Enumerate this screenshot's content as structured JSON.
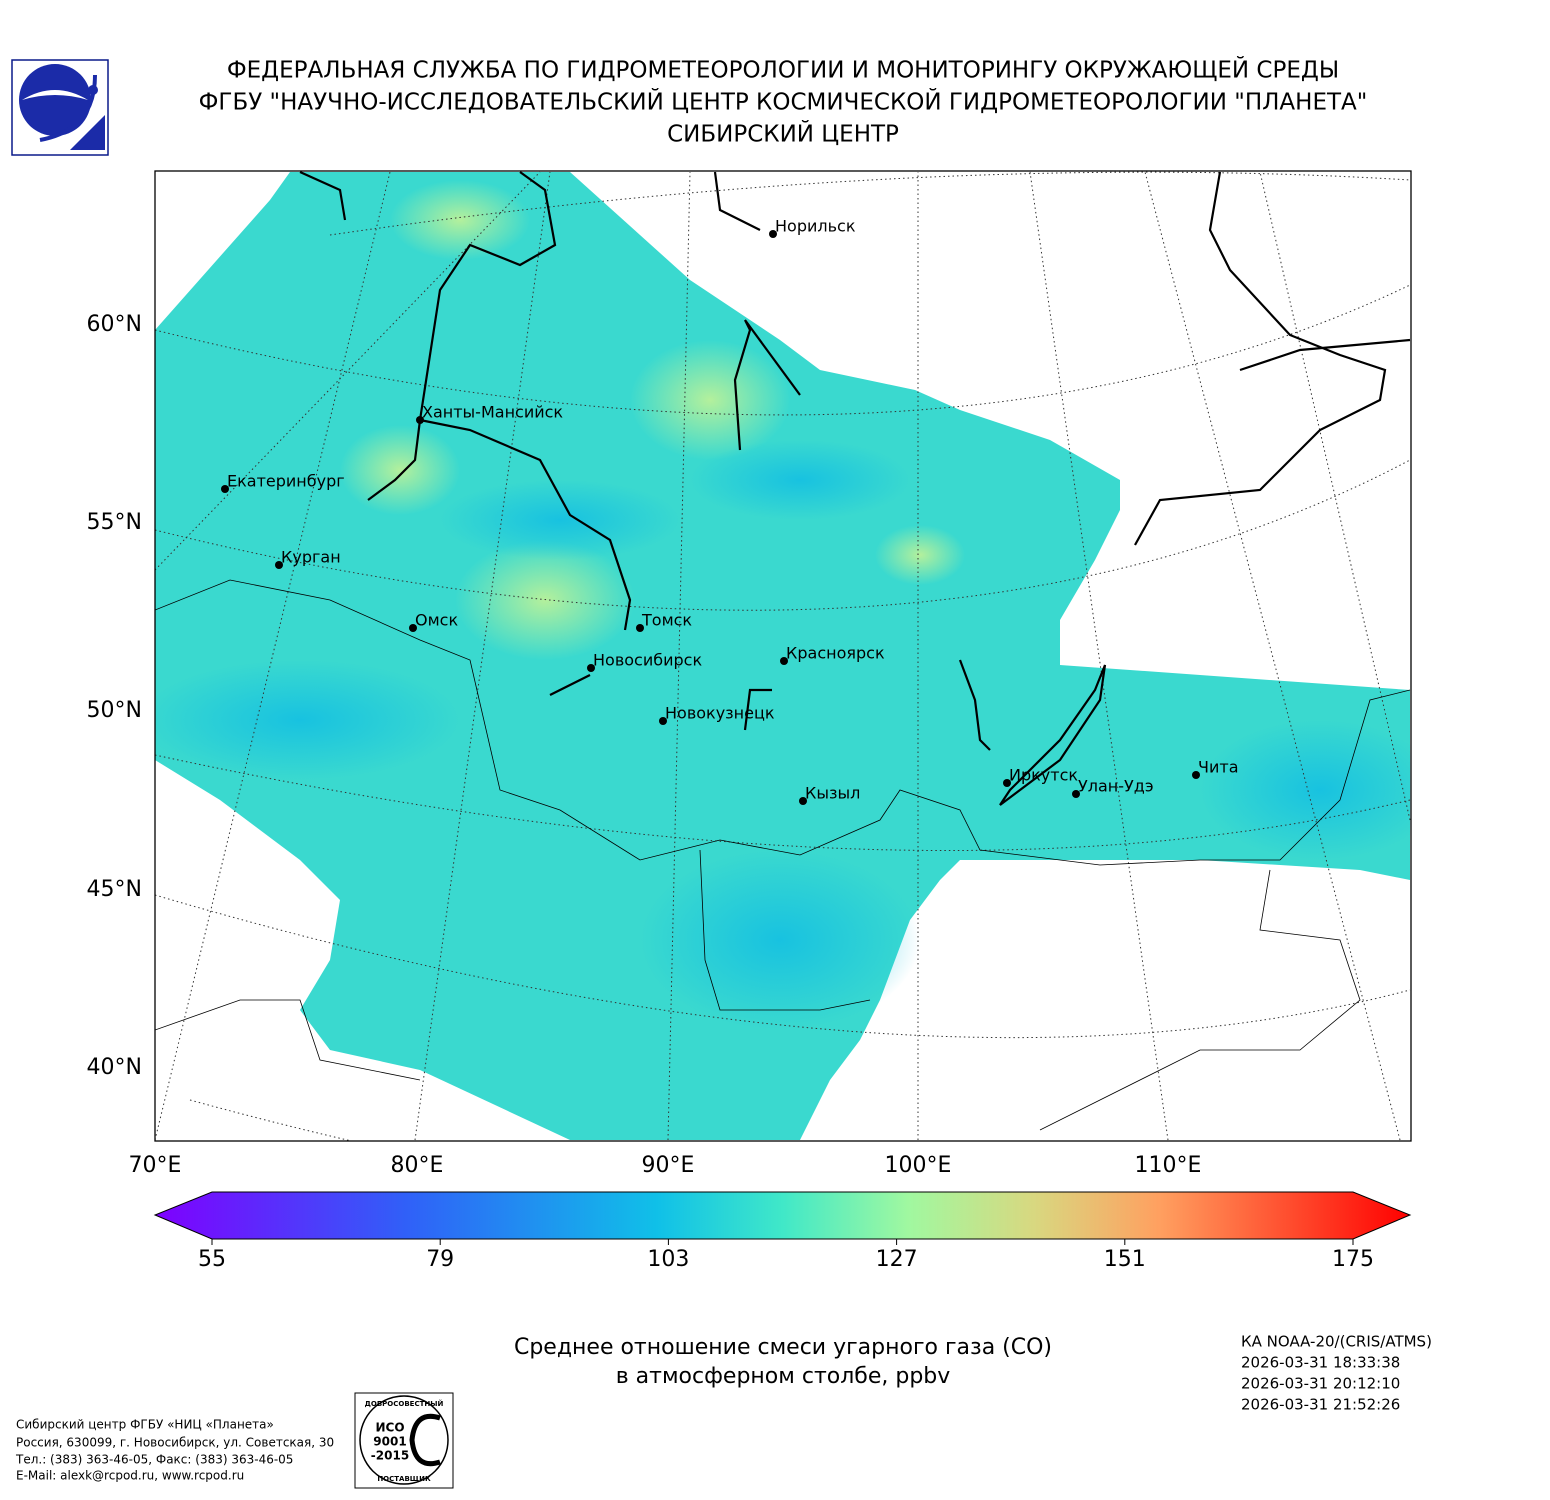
{
  "header": {
    "lines": [
      "ФЕДЕРАЛЬНАЯ СЛУЖБА ПО ГИДРОМЕТЕОРОЛОГИИ И МОНИТОРИНГУ ОКРУЖАЮЩЕЙ СРЕДЫ",
      "ФГБУ \"НАУЧНО-ИССЛЕДОВАТЕЛЬСКИЙ ЦЕНТР КОСМИЧЕСКОЙ ГИДРОМЕТЕОРОЛОГИИ \"ПЛАНЕТА\"",
      "СИБИРСКИЙ ЦЕНТР"
    ]
  },
  "map": {
    "lat_labels": [
      "60°N",
      "55°N",
      "50°N",
      "45°N",
      "40°N"
    ],
    "lon_labels": [
      "70°E",
      "80°E",
      "90°E",
      "100°E",
      "110°E"
    ],
    "cities": [
      "Норильск",
      "Ханты-Мансийск",
      "Екатеринбург",
      "Курган",
      "Омск",
      "Томск",
      "Новосибирск",
      "Красноярск",
      "Новокузнецк",
      "Иркутск",
      "Кызыл",
      "Улан-Удэ",
      "Чита"
    ]
  },
  "colorbar": {
    "lim": [
      55,
      175
    ],
    "ticks": [
      55,
      79,
      103,
      127,
      151,
      175
    ]
  },
  "caption": [
    "Среднее отношение смеси угарного газа (CO)",
    "в атмосферном столбе, ppbv"
  ],
  "satellite": [
    "КА NOAA-20/(CRIS/ATMS)",
    "2026-03-31 18:33:38",
    "2026-03-31 20:12:10",
    "2026-03-31 21:52:26"
  ],
  "footer": [
    "Сибирский центр ФГБУ «НИЦ «Планета»",
    "Россия, 630099, г. Новосибирск, ул. Советская, 30",
    "Тел.: (383) 363-46-05, Факс: (383) 363-46-05",
    "E-Mail: alexk@rcpod.ru, www.rcpod.ru"
  ],
  "iso_logo": [
    "ДОБРОСОВЕСТНЫЙ",
    "ИСО",
    "9001",
    "-2015",
    "ПОСТАВЩИК"
  ]
}
